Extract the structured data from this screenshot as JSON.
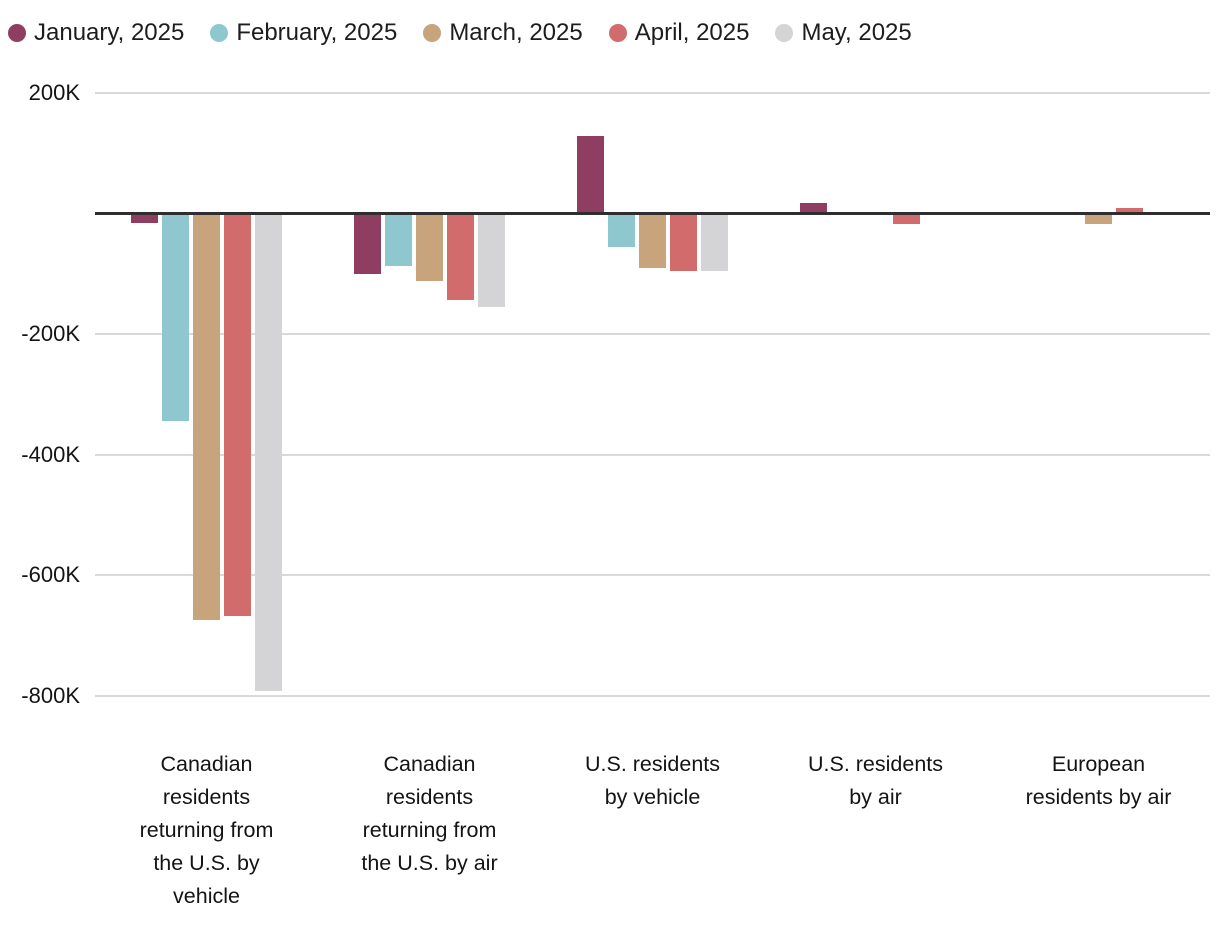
{
  "chart_data": {
    "type": "bar",
    "title": "",
    "xlabel": "",
    "ylabel": "",
    "legend_position": "top",
    "grid": "horizontal",
    "ylim": [
      -840000,
      240000
    ],
    "categories": [
      "Canadian\nresidents\nreturning from\nthe U.S. by\nvehicle",
      "Canadian\nresidents\nreturning from\nthe U.S. by air",
      "U.S. residents\nby vehicle",
      "U.S. residents\nby air",
      "European\nresidents by air"
    ],
    "series": [
      {
        "name": "January, 2025",
        "color": "#8f3e62",
        "values": [
          -15000,
          -100000,
          129000,
          17000,
          0
        ]
      },
      {
        "name": "February, 2025",
        "color": "#8ec8ce",
        "values": [
          -345000,
          -87000,
          -56000,
          0,
          -3000
        ]
      },
      {
        "name": "March, 2025",
        "color": "#c8a47c",
        "values": [
          -675000,
          -112000,
          -90000,
          0,
          -18000
        ]
      },
      {
        "name": "April, 2025",
        "color": "#d26b6b",
        "values": [
          -668000,
          -143000,
          -96000,
          -17000,
          9000
        ]
      },
      {
        "name": "May, 2025",
        "color": "#d4d4d6",
        "values": [
          -793000,
          -155000,
          -96000,
          0,
          0
        ]
      }
    ],
    "y_ticks": [
      {
        "value": 200000,
        "label": "200K"
      },
      {
        "value": 0,
        "label": ""
      },
      {
        "value": -200000,
        "label": "-200K"
      },
      {
        "value": -400000,
        "label": "-400K"
      },
      {
        "value": -600000,
        "label": "-600K"
      },
      {
        "value": -800000,
        "label": "-800K"
      }
    ]
  },
  "colors": {
    "background": "#ffffff",
    "axis": "#2e2e2e",
    "gridline": "#d9d9d9",
    "text": "#141414"
  }
}
